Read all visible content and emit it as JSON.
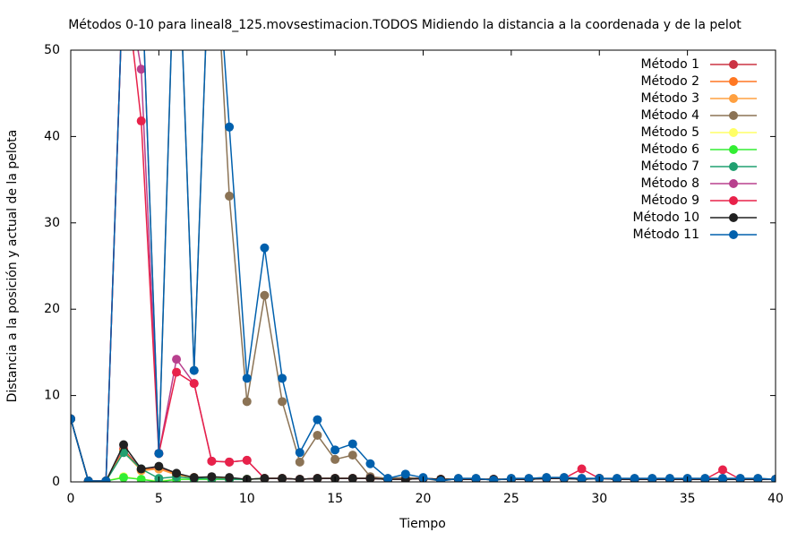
{
  "chart_data": {
    "type": "line",
    "title": "Métodos 0-10 para lineal8_125.movsestimacion.TODOS Midiendo la distancia a la coordenada y de la pelot",
    "x_label": "Tiempo",
    "y_label": "Distancia a la posición y actual de la pelota",
    "x": [
      0,
      1,
      2,
      3,
      4,
      5,
      6,
      7,
      8,
      9,
      10,
      11,
      12,
      13,
      14,
      15,
      16,
      17,
      18,
      19,
      20,
      21,
      22,
      23,
      24,
      25,
      26,
      27,
      28,
      29,
      30,
      31,
      32,
      33,
      34,
      35,
      36,
      37,
      38,
      39,
      40
    ],
    "xlim": [
      0,
      40
    ],
    "xticks": [
      0,
      5,
      10,
      15,
      20,
      25,
      30,
      35,
      40
    ],
    "ylim": [
      0,
      50
    ],
    "yticks": [
      0,
      10,
      20,
      30,
      40,
      50
    ],
    "legend": "top right",
    "series": [
      {
        "name": "Método 1",
        "color": "#cc3344",
        "values": [
          7.3,
          0.1,
          0.1,
          3.8,
          1.4,
          1.6,
          0.9,
          0.5,
          0.5,
          0.4,
          0.3,
          0.4,
          0.4,
          0.3,
          0.4,
          0.4,
          0.4,
          0.4,
          0.3,
          0.3,
          0.4,
          0.3,
          0.3,
          0.3,
          0.3,
          0.3,
          0.3,
          0.4,
          0.4,
          0.3,
          0.4,
          0.3,
          0.3,
          0.3,
          0.3,
          0.3,
          0.3,
          0.3,
          0.3,
          0.3,
          0.3
        ]
      },
      {
        "name": "Método 2",
        "color": "#ff7722",
        "values": [
          7.3,
          0.1,
          0.1,
          3.6,
          1.4,
          1.5,
          0.9,
          0.5,
          0.5,
          0.4,
          0.3,
          0.4,
          0.4,
          0.3,
          0.4,
          0.4,
          0.4,
          0.4,
          0.3,
          0.3,
          0.4,
          0.3,
          0.3,
          0.3,
          0.3,
          0.3,
          0.3,
          0.4,
          0.4,
          0.3,
          0.4,
          0.3,
          0.3,
          0.3,
          0.3,
          0.3,
          0.3,
          0.3,
          0.3,
          0.3,
          0.3
        ]
      },
      {
        "name": "Método 3",
        "color": "#ffa040",
        "values": [
          7.3,
          0.1,
          0.1,
          3.5,
          1.3,
          1.5,
          0.8,
          0.5,
          0.5,
          0.4,
          0.3,
          0.4,
          0.4,
          0.3,
          0.4,
          0.4,
          0.4,
          0.4,
          0.3,
          0.3,
          0.4,
          0.3,
          0.3,
          0.3,
          0.3,
          0.3,
          0.3,
          0.4,
          0.4,
          0.3,
          0.4,
          0.3,
          0.3,
          0.3,
          0.3,
          0.3,
          0.3,
          0.3,
          0.3,
          0.3,
          0.3
        ]
      },
      {
        "name": "Método 4",
        "color": "#8b7355",
        "values": [
          7.3,
          0.1,
          0.1,
          60,
          60,
          3.3,
          70,
          12.9,
          70,
          33.1,
          9.3,
          21.6,
          9.3,
          2.3,
          5.4,
          2.6,
          3.1,
          0.6,
          0.4,
          0.5,
          0.4,
          0.1,
          0.4,
          0.4,
          0.2,
          0.4,
          0.4,
          0.5,
          0.5,
          0.4,
          0.4,
          0.4,
          0.4,
          0.4,
          0.4,
          0.4,
          0.4,
          0.4,
          0.4,
          0.4,
          0.3
        ]
      },
      {
        "name": "Método 5",
        "color": "#ffff66",
        "values": [
          7.3,
          0.1,
          0.1,
          0.6,
          0.3,
          0.1,
          0.3,
          0.3,
          0.3,
          0.3,
          0.3,
          0.4,
          0.4,
          0.3,
          0.4,
          0.4,
          0.4,
          0.4,
          0.3,
          0.3,
          0.4,
          0.3,
          0.3,
          0.3,
          0.3,
          0.3,
          0.3,
          0.4,
          0.4,
          0.3,
          0.4,
          0.3,
          0.3,
          0.3,
          0.3,
          0.3,
          0.3,
          0.3,
          0.3,
          0.3,
          0.3
        ]
      },
      {
        "name": "Método 6",
        "color": "#33ee33",
        "values": [
          7.3,
          0.1,
          0.1,
          0.5,
          0.3,
          0.0,
          0.3,
          0.3,
          0.3,
          0.3,
          0.3,
          0.4,
          0.4,
          0.3,
          0.4,
          0.4,
          0.4,
          0.4,
          0.3,
          0.3,
          0.4,
          0.3,
          0.3,
          0.3,
          0.3,
          0.3,
          0.3,
          0.4,
          0.4,
          0.3,
          0.4,
          0.3,
          0.3,
          0.3,
          0.3,
          0.3,
          0.3,
          0.3,
          0.3,
          0.3,
          0.3
        ]
      },
      {
        "name": "Método 7",
        "color": "#20a070",
        "values": [
          7.3,
          0.1,
          0.1,
          3.4,
          1.5,
          0.4,
          0.6,
          0.4,
          0.4,
          0.3,
          0.3,
          0.4,
          0.4,
          0.3,
          0.4,
          0.4,
          0.4,
          0.4,
          0.3,
          0.3,
          0.4,
          0.3,
          0.3,
          0.3,
          0.3,
          0.3,
          0.3,
          0.4,
          0.4,
          0.3,
          0.4,
          0.3,
          0.3,
          0.3,
          0.3,
          0.3,
          0.3,
          0.3,
          0.3,
          0.3,
          0.3
        ]
      },
      {
        "name": "Método 8",
        "color": "#b8408e",
        "values": [
          7.3,
          0.1,
          0.1,
          60,
          47.8,
          3.3,
          14.2,
          11.4,
          2.4,
          2.3,
          2.5,
          0.4,
          0.4,
          0.3,
          0.4,
          0.4,
          0.4,
          0.4,
          0.3,
          0.3,
          0.4,
          0.3,
          0.3,
          0.3,
          0.3,
          0.3,
          0.3,
          0.4,
          0.4,
          0.3,
          0.4,
          0.3,
          0.3,
          0.3,
          0.3,
          0.3,
          0.3,
          0.3,
          0.3,
          0.3,
          0.3
        ]
      },
      {
        "name": "Método 9",
        "color": "#e8224a",
        "values": [
          7.3,
          0.1,
          0.1,
          60,
          41.8,
          3.3,
          12.7,
          11.4,
          2.4,
          2.3,
          2.5,
          0.4,
          0.4,
          0.3,
          0.4,
          0.4,
          0.4,
          0.4,
          0.3,
          0.3,
          0.4,
          0.3,
          0.3,
          0.3,
          0.3,
          0.3,
          0.3,
          0.4,
          0.4,
          1.5,
          0.4,
          0.3,
          0.3,
          0.3,
          0.3,
          0.3,
          0.3,
          1.4,
          0.3,
          0.3,
          0.3
        ]
      },
      {
        "name": "Método 10",
        "color": "#202020",
        "values": [
          7.3,
          0.1,
          0.1,
          4.3,
          1.5,
          1.8,
          1.0,
          0.5,
          0.6,
          0.5,
          0.3,
          0.4,
          0.4,
          0.3,
          0.4,
          0.4,
          0.4,
          0.4,
          0.3,
          0.3,
          0.4,
          0.3,
          0.3,
          0.3,
          0.3,
          0.3,
          0.3,
          0.4,
          0.4,
          0.3,
          0.4,
          0.3,
          0.3,
          0.3,
          0.3,
          0.3,
          0.3,
          0.3,
          0.3,
          0.3,
          0.3
        ]
      },
      {
        "name": "Método 11",
        "color": "#0060ad",
        "values": [
          7.3,
          0.1,
          0.1,
          60,
          60,
          3.3,
          70,
          12.9,
          70,
          41.1,
          12.0,
          27.1,
          12.0,
          3.4,
          7.2,
          3.7,
          4.4,
          2.1,
          0.4,
          0.9,
          0.5,
          0.1,
          0.4,
          0.4,
          0.2,
          0.4,
          0.4,
          0.5,
          0.5,
          0.4,
          0.4,
          0.4,
          0.4,
          0.4,
          0.4,
          0.4,
          0.4,
          0.4,
          0.4,
          0.4,
          0.3
        ]
      }
    ]
  }
}
